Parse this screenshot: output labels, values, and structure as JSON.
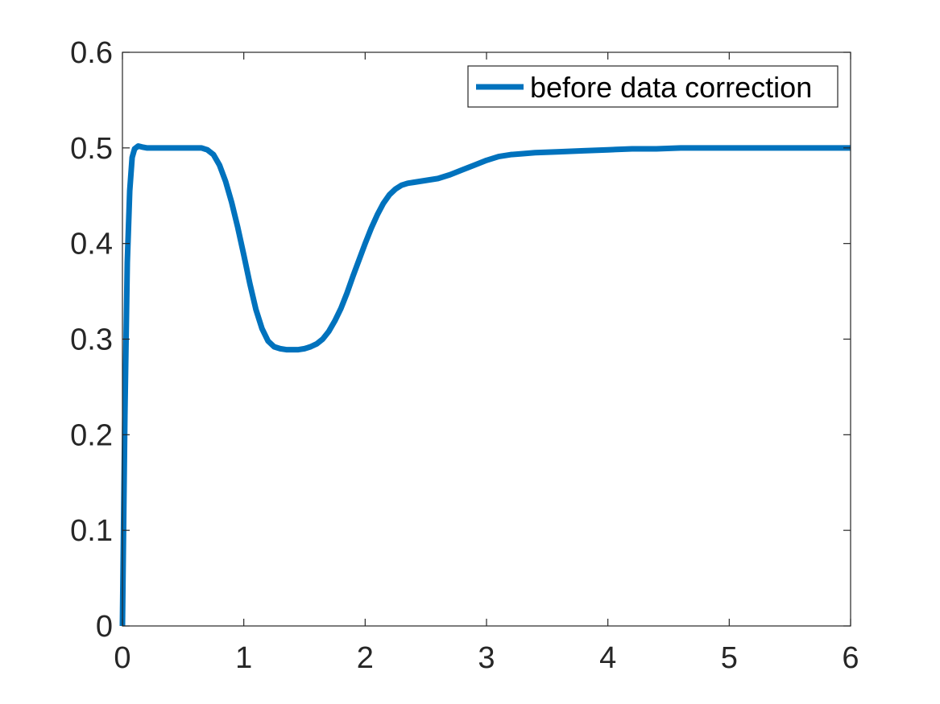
{
  "chart_data": {
    "type": "line",
    "title": "",
    "xlabel": "",
    "ylabel": "",
    "xlim": [
      0,
      6
    ],
    "ylim": [
      0,
      0.6
    ],
    "x_ticks": [
      0,
      1,
      2,
      3,
      4,
      5,
      6
    ],
    "y_ticks": [
      0,
      0.1,
      0.2,
      0.3,
      0.4,
      0.5,
      0.6
    ],
    "x_tick_labels": [
      "0",
      "1",
      "2",
      "3",
      "4",
      "5",
      "6"
    ],
    "y_tick_labels": [
      "0",
      "0.1",
      "0.2",
      "0.3",
      "0.4",
      "0.5",
      "0.6"
    ],
    "grid": false,
    "legend": {
      "location": "top-right",
      "entries": [
        "before data correction"
      ]
    },
    "series": [
      {
        "name": "before data correction",
        "color": "#0072BD",
        "x": [
          0,
          0.02,
          0.04,
          0.06,
          0.08,
          0.1,
          0.13,
          0.16,
          0.2,
          0.3,
          0.4,
          0.5,
          0.6,
          0.65,
          0.7,
          0.75,
          0.8,
          0.85,
          0.9,
          0.95,
          1.0,
          1.05,
          1.1,
          1.15,
          1.2,
          1.25,
          1.3,
          1.35,
          1.4,
          1.45,
          1.5,
          1.55,
          1.6,
          1.65,
          1.7,
          1.75,
          1.8,
          1.85,
          1.9,
          1.95,
          2.0,
          2.05,
          2.1,
          2.15,
          2.2,
          2.25,
          2.3,
          2.35,
          2.4,
          2.5,
          2.6,
          2.7,
          2.8,
          2.9,
          3.0,
          3.1,
          3.2,
          3.3,
          3.4,
          3.6,
          3.8,
          4.0,
          4.2,
          4.4,
          4.6,
          4.8,
          5.0,
          5.5,
          6.0
        ],
        "values": [
          0,
          0.22,
          0.38,
          0.455,
          0.49,
          0.499,
          0.502,
          0.501,
          0.5,
          0.5,
          0.5,
          0.5,
          0.5,
          0.5,
          0.498,
          0.493,
          0.482,
          0.465,
          0.443,
          0.417,
          0.388,
          0.358,
          0.331,
          0.311,
          0.298,
          0.292,
          0.29,
          0.289,
          0.289,
          0.289,
          0.29,
          0.292,
          0.295,
          0.3,
          0.308,
          0.319,
          0.332,
          0.348,
          0.366,
          0.383,
          0.4,
          0.416,
          0.43,
          0.442,
          0.451,
          0.457,
          0.461,
          0.463,
          0.464,
          0.466,
          0.468,
          0.472,
          0.477,
          0.482,
          0.487,
          0.491,
          0.493,
          0.494,
          0.495,
          0.496,
          0.497,
          0.498,
          0.499,
          0.499,
          0.5,
          0.5,
          0.5,
          0.5,
          0.5
        ]
      }
    ]
  }
}
